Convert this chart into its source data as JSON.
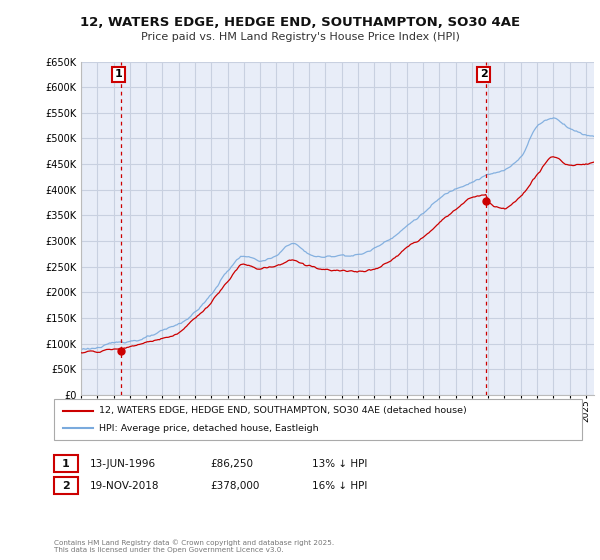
{
  "title_line1": "12, WATERS EDGE, HEDGE END, SOUTHAMPTON, SO30 4AE",
  "title_line2": "Price paid vs. HM Land Registry's House Price Index (HPI)",
  "legend_label_red": "12, WATERS EDGE, HEDGE END, SOUTHAMPTON, SO30 4AE (detached house)",
  "legend_label_blue": "HPI: Average price, detached house, Eastleigh",
  "annotation1_label": "1",
  "annotation1_date": "13-JUN-1996",
  "annotation1_price": "£86,250",
  "annotation1_hpi": "13% ↓ HPI",
  "annotation1_year": 1996.45,
  "annotation1_value": 86250,
  "annotation2_label": "2",
  "annotation2_date": "19-NOV-2018",
  "annotation2_price": "£378,000",
  "annotation2_hpi": "16% ↓ HPI",
  "annotation2_year": 2018.88,
  "annotation2_value": 378000,
  "footer": "Contains HM Land Registry data © Crown copyright and database right 2025.\nThis data is licensed under the Open Government Licence v3.0.",
  "bg_color": "#ffffff",
  "plot_bg_color": "#e8edf8",
  "grid_color": "#c8d0e0",
  "red_color": "#cc0000",
  "blue_color": "#7aaadd",
  "vline_color": "#cc0000",
  "ylim": [
    0,
    650000
  ],
  "xlim_start": 1994.0,
  "xlim_end": 2025.5
}
